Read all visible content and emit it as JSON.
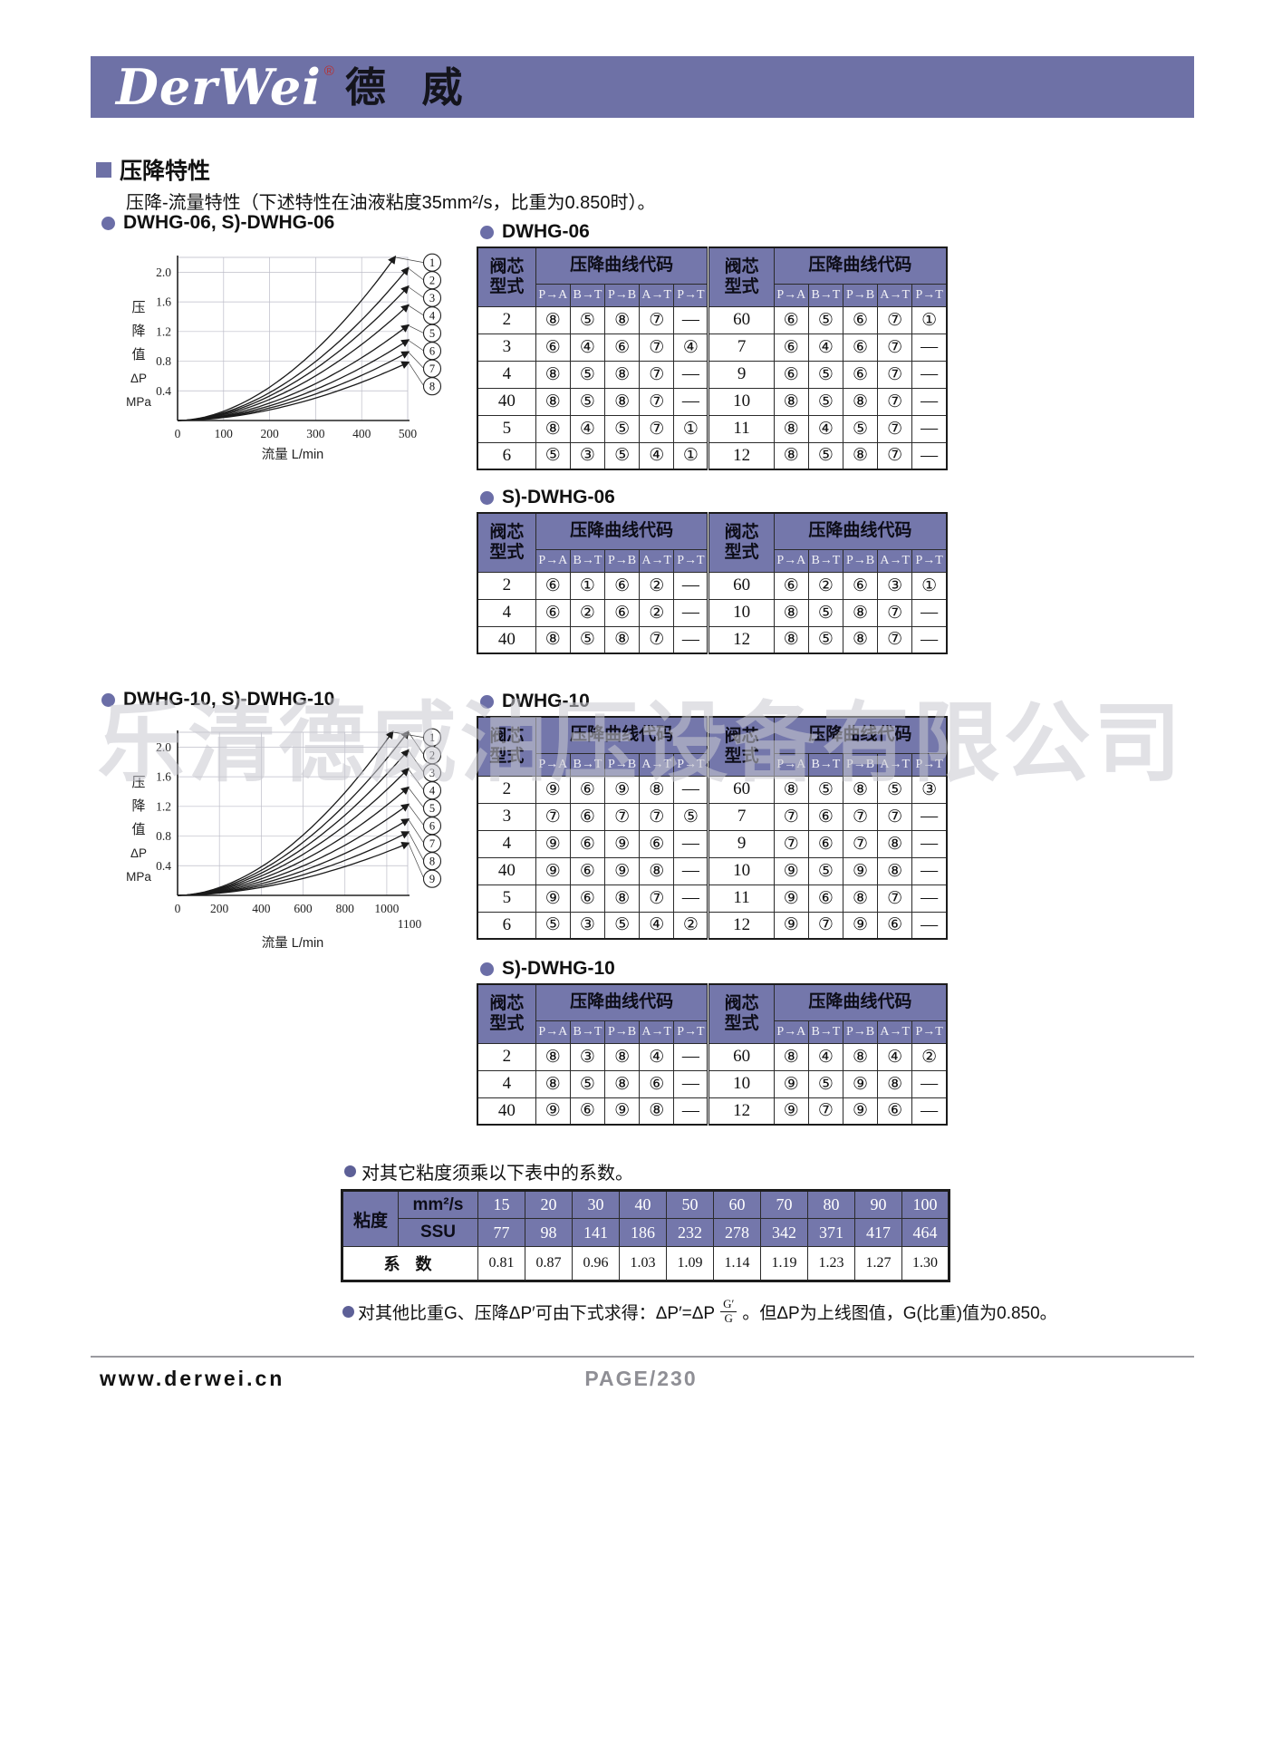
{
  "page": {
    "logo_latin": "DerWei",
    "logo_reg": "®",
    "logo_cn": "德 威",
    "watermark": "乐清德威油压设备有限公司",
    "footer_url": "www.derwei.cn",
    "footer_page": "PAGE/230"
  },
  "section": {
    "title": "压降特性",
    "subtitle": "压降-流量特性（下述特性在油液粘度35mm²/s，比重为0.850时）。"
  },
  "notes": {
    "viscosity": "对其它粘度须乘以下表中的系数。",
    "gravity_prefix": "对其他比重G、压降ΔP′可由下式求得：ΔP′=ΔP",
    "gravity_frac_top": "G′",
    "gravity_frac_bottom": "G",
    "gravity_suffix": "。但ΔP为上线图值，G(比重)值为0.850。"
  },
  "code_table_headers": {
    "type_line1": "阀芯",
    "type_line2": "型式",
    "code": "压降曲线代码",
    "paths": [
      "P→A",
      "B→T",
      "P→B",
      "A→T",
      "P→T"
    ]
  },
  "code_tables": [
    {
      "title": "DWHG-06",
      "left_rows": [
        [
          "2",
          "⑧",
          "⑤",
          "⑧",
          "⑦",
          "—"
        ],
        [
          "3",
          "⑥",
          "④",
          "⑥",
          "⑦",
          "④"
        ],
        [
          "4",
          "⑧",
          "⑤",
          "⑧",
          "⑦",
          "—"
        ],
        [
          "40",
          "⑧",
          "⑤",
          "⑧",
          "⑦",
          "—"
        ],
        [
          "5",
          "⑧",
          "④",
          "⑤",
          "⑦",
          "①"
        ],
        [
          "6",
          "⑤",
          "③",
          "⑤",
          "④",
          "①"
        ]
      ],
      "right_rows": [
        [
          "60",
          "⑥",
          "⑤",
          "⑥",
          "⑦",
          "①"
        ],
        [
          "7",
          "⑥",
          "④",
          "⑥",
          "⑦",
          "—"
        ],
        [
          "9",
          "⑥",
          "⑤",
          "⑥",
          "⑦",
          "—"
        ],
        [
          "10",
          "⑧",
          "⑤",
          "⑧",
          "⑦",
          "—"
        ],
        [
          "11",
          "⑧",
          "④",
          "⑤",
          "⑦",
          "—"
        ],
        [
          "12",
          "⑧",
          "⑤",
          "⑧",
          "⑦",
          "—"
        ]
      ]
    },
    {
      "title": "S)-DWHG-06",
      "left_rows": [
        [
          "2",
          "⑥",
          "①",
          "⑥",
          "②",
          "—"
        ],
        [
          "4",
          "⑥",
          "②",
          "⑥",
          "②",
          "—"
        ],
        [
          "40",
          "⑧",
          "⑤",
          "⑧",
          "⑦",
          "—"
        ]
      ],
      "right_rows": [
        [
          "60",
          "⑥",
          "②",
          "⑥",
          "③",
          "①"
        ],
        [
          "10",
          "⑧",
          "⑤",
          "⑧",
          "⑦",
          "—"
        ],
        [
          "12",
          "⑧",
          "⑤",
          "⑧",
          "⑦",
          "—"
        ]
      ]
    },
    {
      "title": "DWHG-10",
      "left_rows": [
        [
          "2",
          "⑨",
          "⑥",
          "⑨",
          "⑧",
          "—"
        ],
        [
          "3",
          "⑦",
          "⑥",
          "⑦",
          "⑦",
          "⑤"
        ],
        [
          "4",
          "⑨",
          "⑥",
          "⑨",
          "⑥",
          "—"
        ],
        [
          "40",
          "⑨",
          "⑥",
          "⑨",
          "⑧",
          "—"
        ],
        [
          "5",
          "⑨",
          "⑥",
          "⑧",
          "⑦",
          "—"
        ],
        [
          "6",
          "⑤",
          "③",
          "⑤",
          "④",
          "②"
        ]
      ],
      "right_rows": [
        [
          "60",
          "⑧",
          "⑤",
          "⑧",
          "⑤",
          "③"
        ],
        [
          "7",
          "⑦",
          "⑥",
          "⑦",
          "⑦",
          "—"
        ],
        [
          "9",
          "⑦",
          "⑥",
          "⑦",
          "⑧",
          "—"
        ],
        [
          "10",
          "⑨",
          "⑤",
          "⑨",
          "⑧",
          "—"
        ],
        [
          "11",
          "⑨",
          "⑥",
          "⑧",
          "⑦",
          "—"
        ],
        [
          "12",
          "⑨",
          "⑦",
          "⑨",
          "⑥",
          "—"
        ]
      ]
    },
    {
      "title": "S)-DWHG-10",
      "left_rows": [
        [
          "2",
          "⑧",
          "③",
          "⑧",
          "④",
          "—"
        ],
        [
          "4",
          "⑧",
          "⑤",
          "⑧",
          "⑥",
          "—"
        ],
        [
          "40",
          "⑨",
          "⑥",
          "⑨",
          "⑧",
          "—"
        ]
      ],
      "right_rows": [
        [
          "60",
          "⑧",
          "④",
          "⑧",
          "④",
          "②"
        ],
        [
          "10",
          "⑨",
          "⑤",
          "⑨",
          "⑧",
          "—"
        ],
        [
          "12",
          "⑨",
          "⑦",
          "⑨",
          "⑥",
          "—"
        ]
      ]
    }
  ],
  "viscosity_table": {
    "row_label": "粘度",
    "unit1": "mm²/s",
    "unit2": "SSU",
    "mm2s": [
      "15",
      "20",
      "30",
      "40",
      "50",
      "60",
      "70",
      "80",
      "90",
      "100"
    ],
    "ssu": [
      "77",
      "98",
      "141",
      "186",
      "232",
      "278",
      "342",
      "371",
      "417",
      "464"
    ],
    "coef_label": "系 数",
    "coef": [
      "0.81",
      "0.87",
      "0.96",
      "1.03",
      "1.09",
      "1.14",
      "1.19",
      "1.23",
      "1.27",
      "1.30"
    ]
  },
  "chart_data": [
    {
      "type": "line",
      "title": "DWHG-06, S)-DWHG-06",
      "xlabel": "流量  L/min",
      "ylabel": "压降值 ΔP (MPa)",
      "ylabel_stack": [
        "压",
        "降",
        "值",
        "ΔP",
        "MPa"
      ],
      "xticks": [
        0,
        100,
        200,
        300,
        400,
        500
      ],
      "yticks": [
        0.4,
        0.8,
        1.2,
        1.6,
        2.0
      ],
      "xlim": [
        0,
        500
      ],
      "ylim": [
        0,
        2.2
      ],
      "grid": true,
      "legend_position": "right",
      "exponent": 1.85,
      "series": [
        {
          "name": "1",
          "end_x": 500,
          "end_y": 2.45
        },
        {
          "name": "2",
          "end_x": 500,
          "end_y": 2.05
        },
        {
          "name": "3",
          "end_x": 500,
          "end_y": 1.8
        },
        {
          "name": "4",
          "end_x": 500,
          "end_y": 1.55
        },
        {
          "name": "5",
          "end_x": 500,
          "end_y": 1.28
        },
        {
          "name": "6",
          "end_x": 500,
          "end_y": 1.08
        },
        {
          "name": "7",
          "end_x": 500,
          "end_y": 0.92
        },
        {
          "name": "8",
          "end_x": 500,
          "end_y": 0.78
        }
      ]
    },
    {
      "type": "line",
      "title": "DWHG-10, S)-DWHG-10",
      "xlabel": "流量  L/min",
      "ylabel": "压降值 ΔP (MPa)",
      "ylabel_stack": [
        "压",
        "降",
        "值",
        "ΔP",
        "MPa"
      ],
      "xticks": [
        0,
        200,
        400,
        600,
        800,
        1000
      ],
      "extra_xtick": "1100",
      "yticks": [
        0.4,
        0.8,
        1.2,
        1.6,
        2.0
      ],
      "xlim": [
        0,
        1100
      ],
      "ylim": [
        0,
        2.2
      ],
      "grid": true,
      "legend_position": "right",
      "exponent": 1.85,
      "series": [
        {
          "name": "1",
          "end_x": 1100,
          "end_y": 2.5
        },
        {
          "name": "2",
          "end_x": 1100,
          "end_y": 2.2
        },
        {
          "name": "3",
          "end_x": 1100,
          "end_y": 1.95
        },
        {
          "name": "4",
          "end_x": 1100,
          "end_y": 1.7
        },
        {
          "name": "5",
          "end_x": 1100,
          "end_y": 1.45
        },
        {
          "name": "6",
          "end_x": 1100,
          "end_y": 1.22
        },
        {
          "name": "7",
          "end_x": 1100,
          "end_y": 1.02
        },
        {
          "name": "8",
          "end_x": 1100,
          "end_y": 0.85
        },
        {
          "name": "9",
          "end_x": 1100,
          "end_y": 0.7
        }
      ]
    }
  ]
}
